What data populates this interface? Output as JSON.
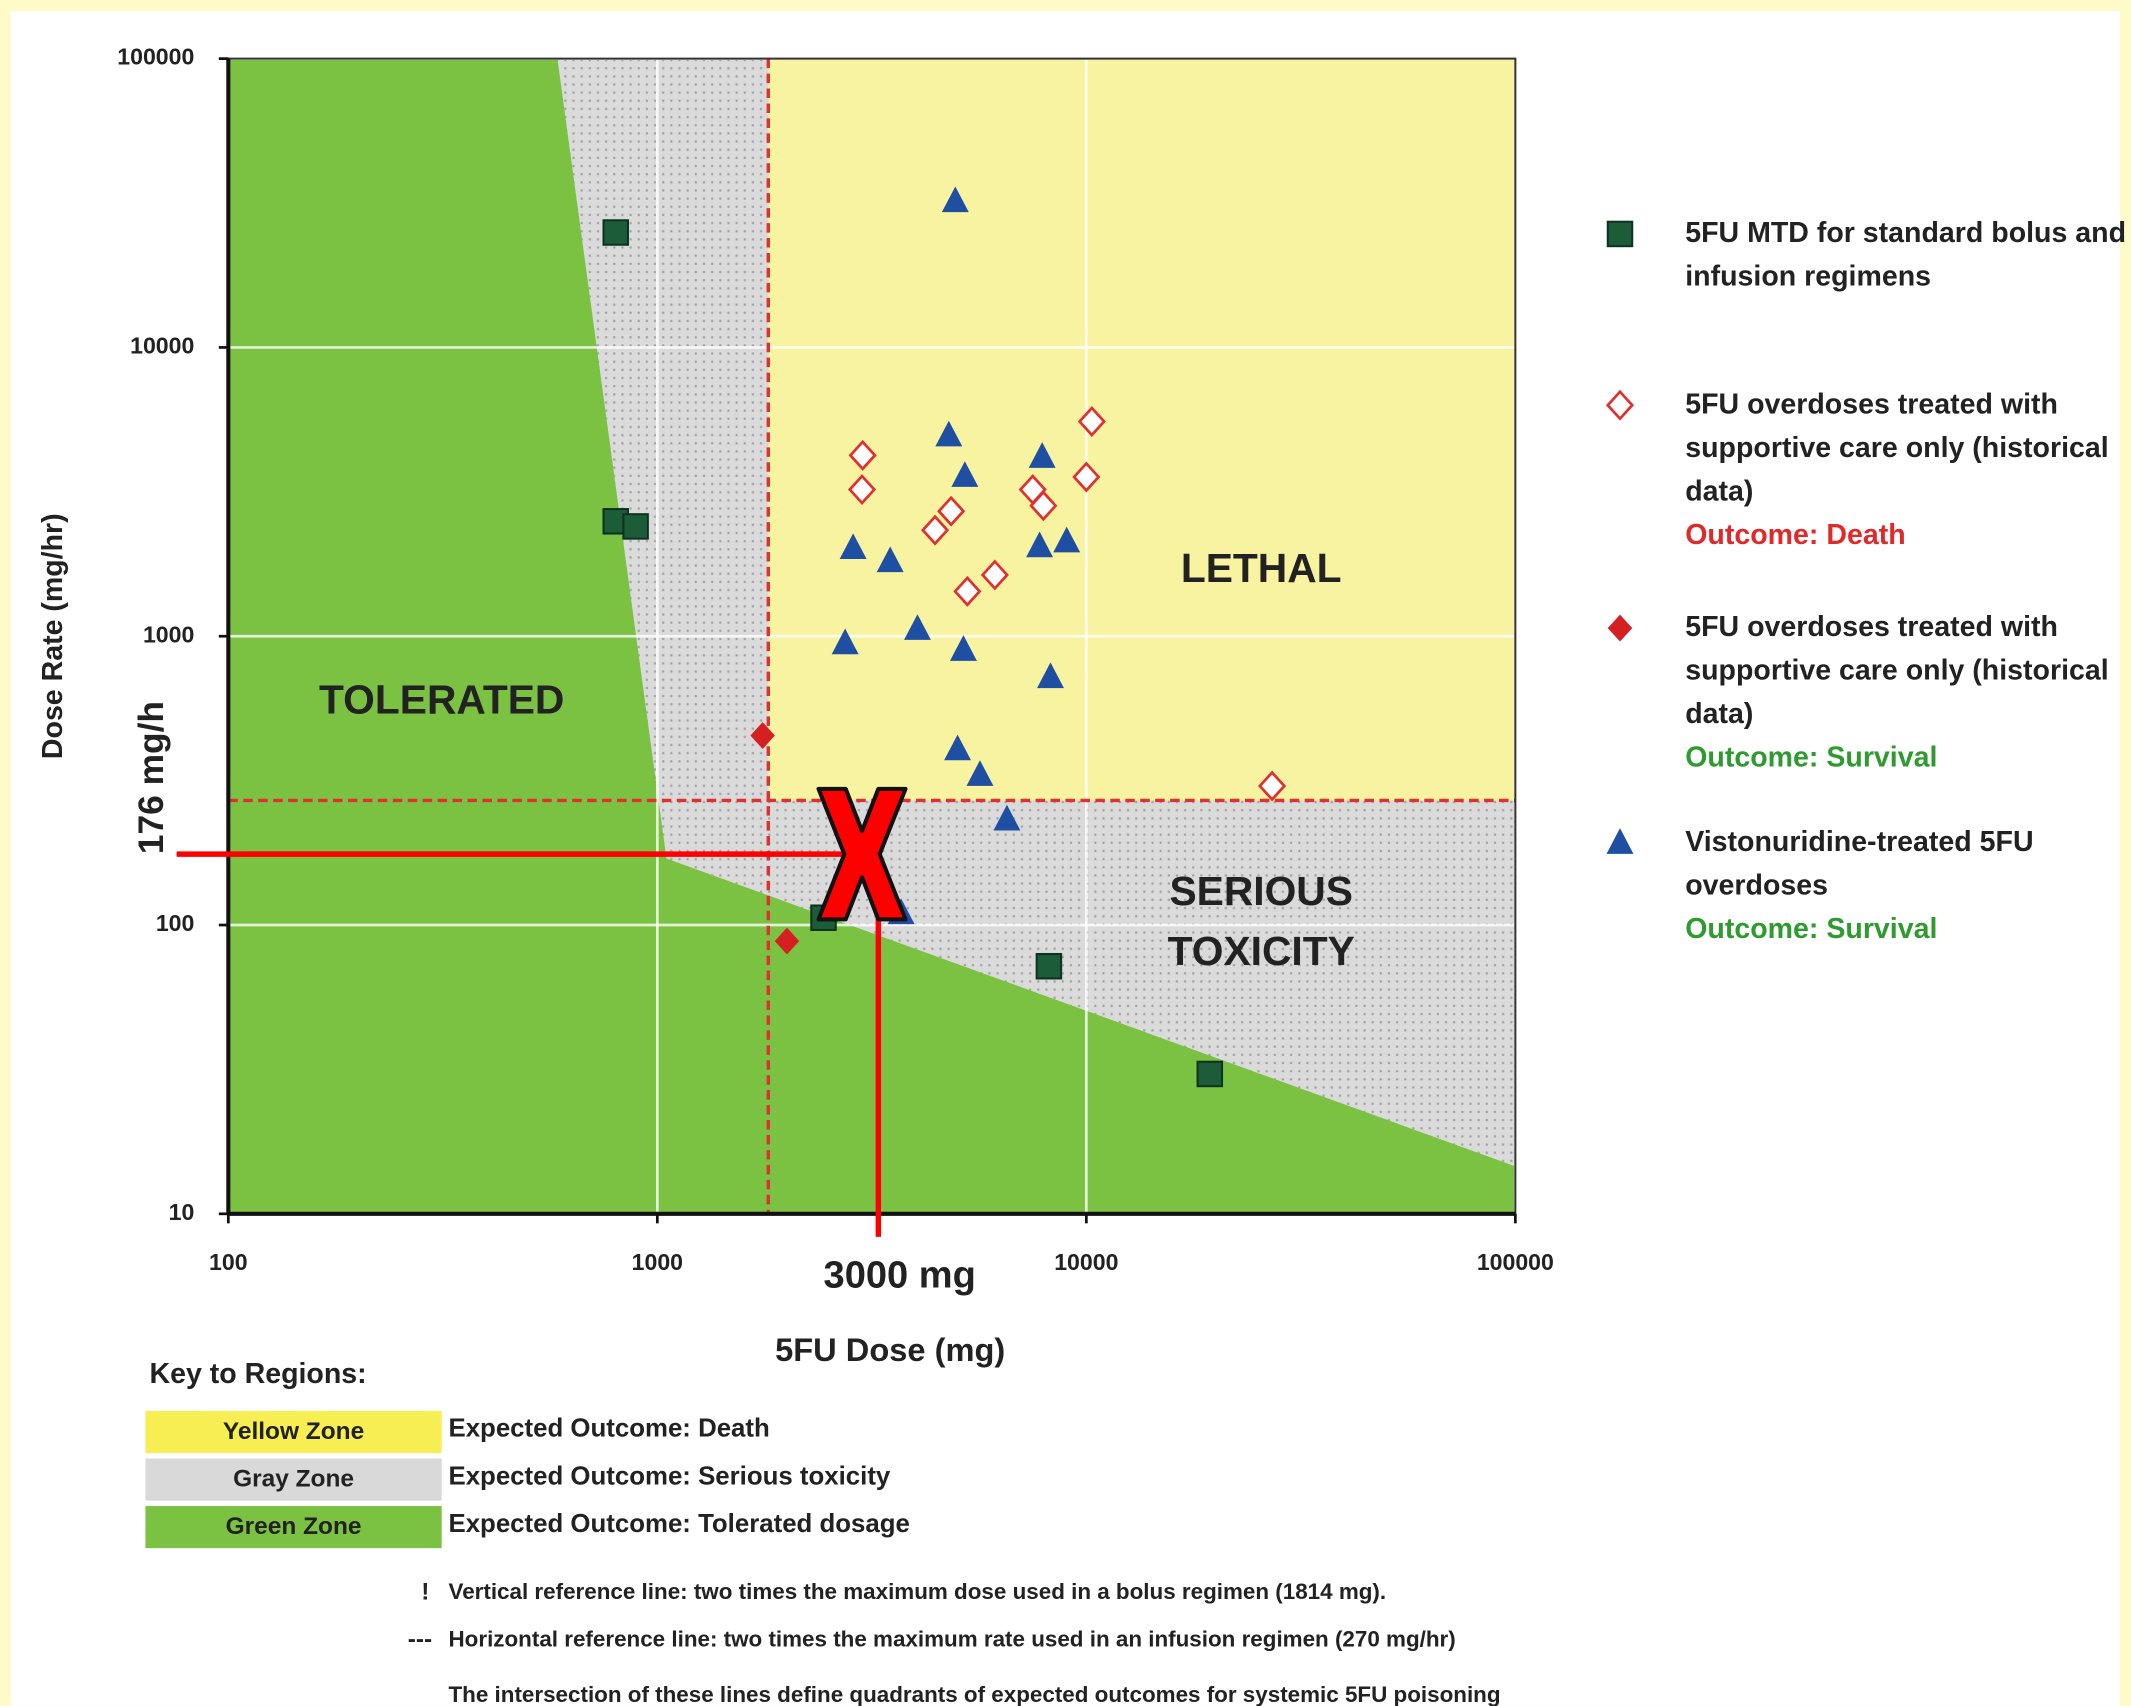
{
  "chart_data": {
    "type": "scatter",
    "x_label": "5FU Dose (mg)",
    "y_label": "Dose Rate (mg/hr)",
    "xlim": [
      100,
      100000
    ],
    "ylim": [
      10,
      100000
    ],
    "log_x": true,
    "log_y": true,
    "xticks": [
      100,
      1000,
      10000,
      100000
    ],
    "yticks": [
      10,
      100,
      1000,
      10000,
      100000
    ],
    "grid": true,
    "regions": [
      {
        "color": "#dadada",
        "label": [
          "SERIOUS",
          "TOXICITY"
        ],
        "points": [
          [
            100,
            10
          ],
          [
            100,
            100000
          ],
          [
            100000,
            100000
          ],
          [
            100000,
            10
          ]
        ]
      },
      {
        "color": "#7cc242",
        "label": [
          "TOLERATED"
        ],
        "points": [
          [
            100,
            100000
          ],
          [
            585,
            100000
          ],
          [
            1050,
            170
          ],
          [
            100000,
            14.6
          ],
          [
            100000,
            10
          ],
          [
            100,
            10
          ]
        ]
      },
      {
        "color": "#f8f3a0",
        "label": [
          "LETHAL"
        ],
        "points": [
          [
            1814,
            270
          ],
          [
            1814,
            100000
          ],
          [
            100000,
            100000
          ],
          [
            100000,
            270
          ]
        ]
      }
    ],
    "ref_lines": [
      {
        "axis": "x",
        "value": 1814,
        "color": "#e03030"
      },
      {
        "axis": "y",
        "value": 270,
        "color": "#e03030"
      }
    ],
    "series": [
      {
        "name": "5FU MTD for standard bolus and infusion regimens",
        "marker": "square",
        "color": "#1d5c38",
        "x": [
          800,
          800,
          890,
          2440,
          8180,
          19400
        ],
        "values": [
          25000,
          2500,
          2400,
          106,
          72,
          30.5
        ]
      },
      {
        "name": "5FU overdoses treated with supportive care only (historical data)",
        "outcome": "Outcome: Death",
        "outcome_color": "#e02a2a",
        "marker": "diamond-open",
        "color": "#e03030",
        "x": [
          3010,
          3000,
          4840,
          4440,
          5280,
          6120,
          7500,
          7940,
          10000,
          10300,
          27100
        ],
        "values": [
          4230,
          3220,
          2710,
          2330,
          1430,
          1630,
          3220,
          2830,
          3560,
          5540,
          303
        ]
      },
      {
        "name": "5FU overdoses treated with supportive care only (historical data)",
        "outcome": "Outcome: Survival",
        "outcome_color": "#2f9a2f",
        "marker": "diamond",
        "color": "#d42020",
        "x": [
          1760,
          2005
        ],
        "values": [
          453,
          88
        ]
      },
      {
        "name": "Vistonuridine-treated 5FU overdoses",
        "outcome": "Outcome: Survival",
        "outcome_color": "#2f9a2f",
        "marker": "triangle",
        "color": "#1f4fa3",
        "x": [
          4950,
          4780,
          5210,
          7890,
          2860,
          3490,
          7780,
          9000,
          2740,
          4040,
          5170,
          8250,
          5010,
          5650,
          6530,
          2900,
          3700
        ],
        "values": [
          32100,
          4960,
          3590,
          4180,
          2020,
          1820,
          2050,
          2130,
          946,
          1060,
          897,
          722,
          406,
          331,
          232,
          177,
          110
        ]
      }
    ],
    "annotation": {
      "x": 3000,
      "y": 176,
      "x_label": "3000 mg",
      "y_label": "176 mg/h",
      "color": "#ff0000"
    }
  },
  "key": {
    "title": "Key to Regions:",
    "rows": [
      {
        "zone": "Yellow Zone",
        "color": "#f6ee52",
        "text": "Expected Outcome: Death"
      },
      {
        "zone": "Gray Zone",
        "color": "#d9d9d9",
        "text": "Expected Outcome: Serious toxicity"
      },
      {
        "zone": "Green Zone",
        "color": "#7cc242",
        "text": "Expected Outcome: Tolerated dosage"
      }
    ]
  },
  "notes": [
    {
      "symbol": "!",
      "text": "Vertical reference line: two times the maximum dose used in a bolus regimen (1814 mg)."
    },
    {
      "symbol": "---",
      "text": "Horizontal reference line: two times the maximum rate used in an infusion regimen (270 mg/hr)"
    },
    {
      "text": "The intersection of these lines define quadrants of expected outcomes for systemic 5FU poisoning"
    }
  ]
}
